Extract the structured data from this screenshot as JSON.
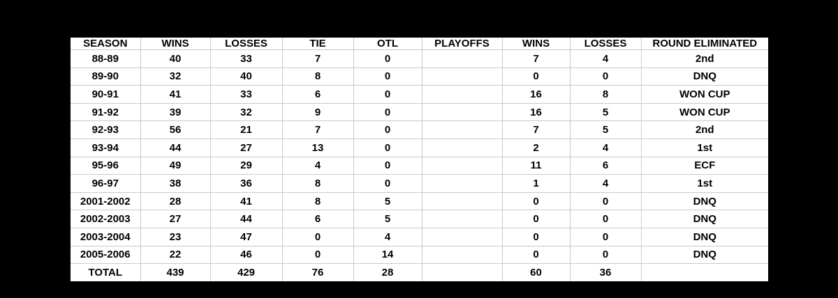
{
  "colors": {
    "background": "#000000",
    "table_background": "#ffffff",
    "gridline": "#c9c9c9",
    "text": "#000000"
  },
  "chart_data": {
    "type": "table",
    "title": "",
    "columns": [
      "SEASON",
      "WINS",
      "LOSSES",
      "TIE",
      "OTL",
      "PLAYOFFS",
      "WINS",
      "LOSSES",
      "ROUND ELIMINATED"
    ],
    "rows": [
      [
        "88-89",
        "40",
        "33",
        "7",
        "0",
        "",
        "7",
        "4",
        "2nd"
      ],
      [
        "89-90",
        "32",
        "40",
        "8",
        "0",
        "",
        "0",
        "0",
        "DNQ"
      ],
      [
        "90-91",
        "41",
        "33",
        "6",
        "0",
        "",
        "16",
        "8",
        "WON CUP"
      ],
      [
        "91-92",
        "39",
        "32",
        "9",
        "0",
        "",
        "16",
        "5",
        "WON CUP"
      ],
      [
        "92-93",
        "56",
        "21",
        "7",
        "0",
        "",
        "7",
        "5",
        "2nd"
      ],
      [
        "93-94",
        "44",
        "27",
        "13",
        "0",
        "",
        "2",
        "4",
        "1st"
      ],
      [
        "95-96",
        "49",
        "29",
        "4",
        "0",
        "",
        "11",
        "6",
        "ECF"
      ],
      [
        "96-97",
        "38",
        "36",
        "8",
        "0",
        "",
        "1",
        "4",
        "1st"
      ],
      [
        "2001-2002",
        "28",
        "41",
        "8",
        "5",
        "",
        "0",
        "0",
        "DNQ"
      ],
      [
        "2002-2003",
        "27",
        "44",
        "6",
        "5",
        "",
        "0",
        "0",
        "DNQ"
      ],
      [
        "2003-2004",
        "23",
        "47",
        "0",
        "4",
        "",
        "0",
        "0",
        "DNQ"
      ],
      [
        "2005-2006",
        "22",
        "46",
        "0",
        "14",
        "",
        "0",
        "0",
        "DNQ"
      ]
    ],
    "total_row": [
      "TOTAL",
      "439",
      "429",
      "76",
      "28",
      "",
      "60",
      "36",
      ""
    ]
  }
}
